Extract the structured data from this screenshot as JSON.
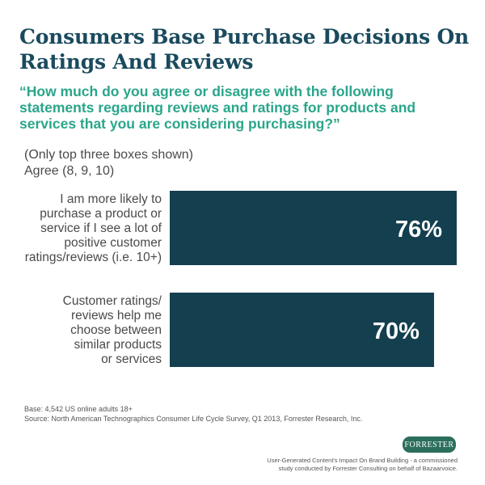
{
  "title": "Consumers Base Purchase Decisions On Ratings And Reviews",
  "question": "“How much do you agree or disagree with the following statements regarding reviews and ratings for products and services that you are considering purchasing?”",
  "note": {
    "line1": "(Only top three boxes shown)",
    "line2": "Agree (8, 9, 10)"
  },
  "chart_data": {
    "type": "bar",
    "orientation": "horizontal",
    "categories": [
      [
        "I am more likely to",
        "purchase a product or",
        "service if I see a lot of",
        "positive customer",
        "ratings/reviews (i.e. 10+)"
      ],
      [
        "Customer ratings/",
        "reviews help me",
        "choose between",
        "similar products",
        "or services"
      ]
    ],
    "values": [
      76,
      70
    ],
    "value_labels": [
      "76%",
      "70%"
    ],
    "unit": "%",
    "bar_color": "#133f4f",
    "label_color": "#ffffff"
  },
  "footer": {
    "base": "Base: 4,542 US online adults 18+",
    "source": "Source: North American Technographics Consumer Life Cycle Survey, Q1 2013, Forrester Research, Inc.",
    "logo_text": "FORRESTER",
    "credit_line1": "User-Generated Content's Impact On Brand Building - a commissioned",
    "credit_line2": "study conducted by Forrester Consulting on behalf of Bazaarvoice."
  },
  "colors": {
    "title": "#1a4a5e",
    "question": "#2aa58b",
    "bar": "#133f4f",
    "logo_bg": "#2b6e5c"
  }
}
